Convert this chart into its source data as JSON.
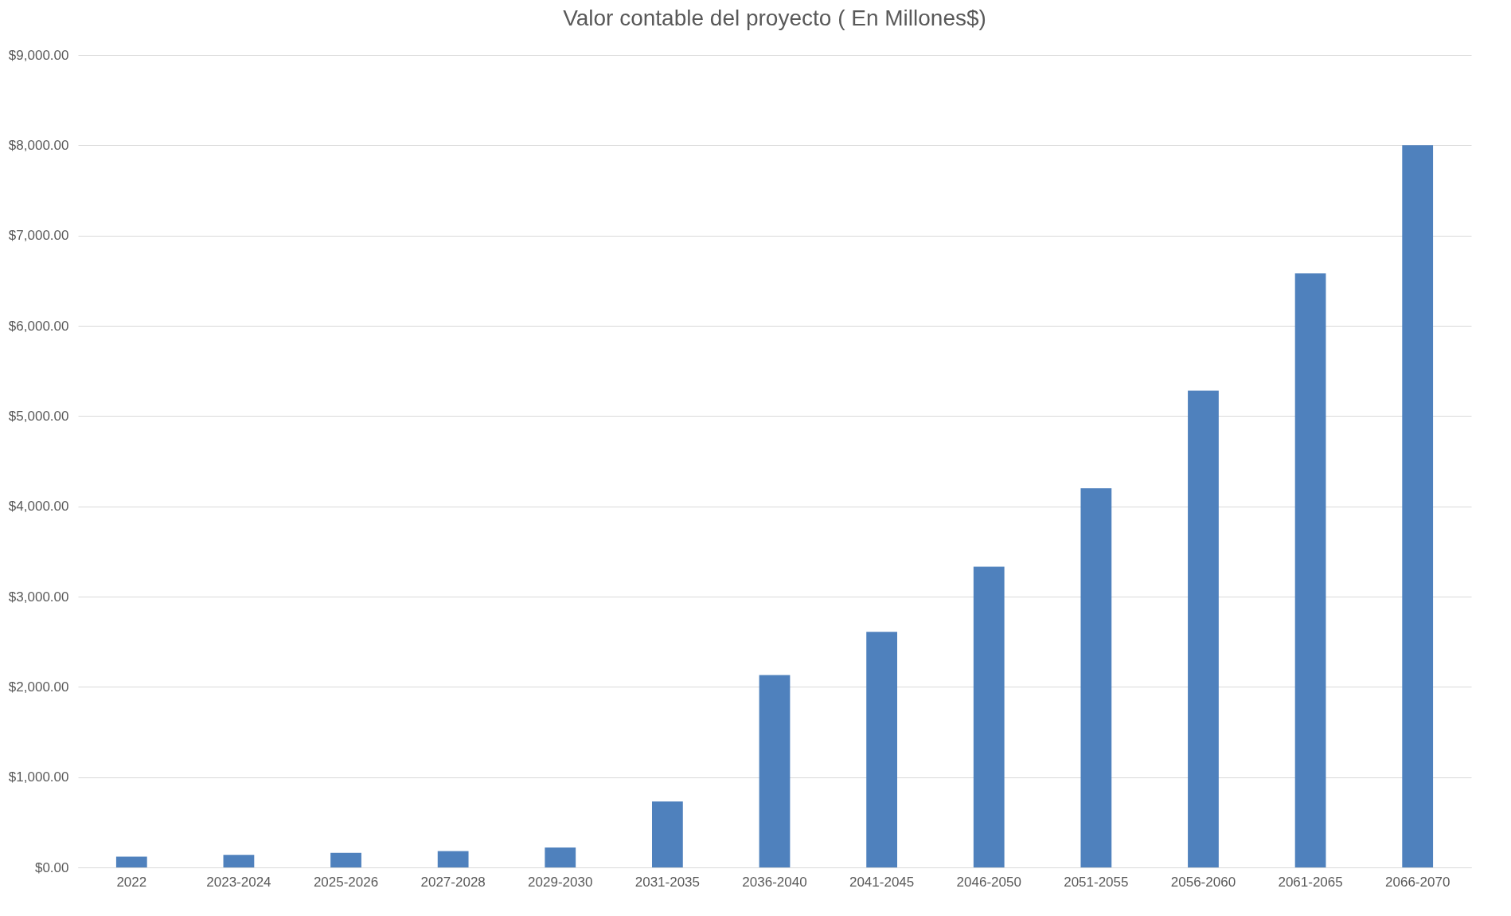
{
  "chart_data": {
    "type": "bar",
    "title": "Valor contable del proyecto ( En Millones$)",
    "categories": [
      "2022",
      "2023-2024",
      "2025-2026",
      "2027-2028",
      "2029-2030",
      "2031-2035",
      "2036-2040",
      "2041-2045",
      "2046-2050",
      "2051-2055",
      "2056-2060",
      "2061-2065",
      "2066-2070"
    ],
    "values": [
      120,
      140,
      160,
      180,
      220,
      730,
      2130,
      2610,
      3330,
      4200,
      5280,
      6580,
      8000
    ],
    "color": "#4f81bd",
    "ylim": [
      0,
      9000
    ],
    "yticks": [
      {
        "value": 0,
        "label": "$0.00"
      },
      {
        "value": 1000,
        "label": "$1,000.00"
      },
      {
        "value": 2000,
        "label": "$2,000.00"
      },
      {
        "value": 3000,
        "label": "$3,000.00"
      },
      {
        "value": 4000,
        "label": "$4,000.00"
      },
      {
        "value": 5000,
        "label": "$5,000.00"
      },
      {
        "value": 6000,
        "label": "$6,000.00"
      },
      {
        "value": 7000,
        "label": "$7,000.00"
      },
      {
        "value": 8000,
        "label": "$8,000.00"
      },
      {
        "value": 9000,
        "label": "$9,000.00"
      }
    ],
    "grid": true
  }
}
